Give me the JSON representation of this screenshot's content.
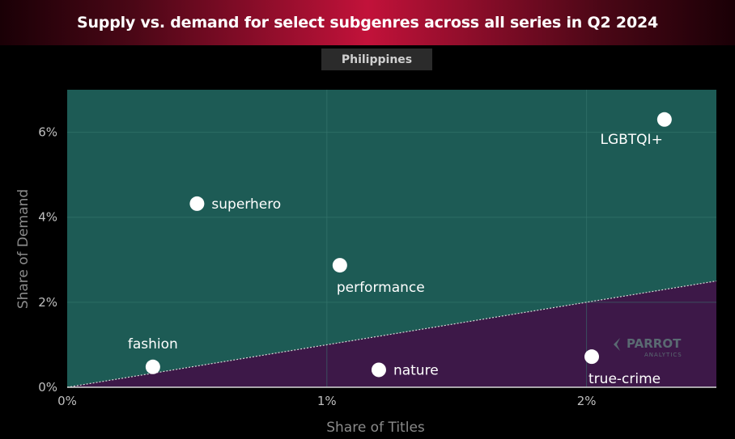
{
  "header": {
    "title": "Supply vs. demand for select subgenres across all series in Q2 2024",
    "region": "Philippines"
  },
  "watermark": {
    "brand": "PARROT",
    "sub": "ANALYTICS"
  },
  "colors": {
    "above_region": "#1d5b55",
    "below_region": "#3d1848",
    "grid": "#3a7a72",
    "points": "#ffffff",
    "diagonal": "#d8d8d8"
  },
  "chart_data": {
    "type": "scatter",
    "xlabel": "Share of Titles",
    "ylabel": "Share of Demand",
    "xlim": [
      0,
      2.5
    ],
    "ylim": [
      0,
      7.0
    ],
    "x_ticks": [
      0,
      1,
      2
    ],
    "x_tick_labels": [
      "0%",
      "1%",
      "2%"
    ],
    "y_ticks": [
      0,
      2,
      4,
      6
    ],
    "y_tick_labels": [
      "0%",
      "2%",
      "4%",
      "6%"
    ],
    "reference_line": "y = x",
    "points": [
      {
        "label": "LGBTQI+",
        "x": 2.3,
        "y": 6.3,
        "label_pos": "below-left"
      },
      {
        "label": "superhero",
        "x": 0.5,
        "y": 4.32,
        "label_pos": "right"
      },
      {
        "label": "performance",
        "x": 1.05,
        "y": 2.87,
        "label_pos": "below-right"
      },
      {
        "label": "fashion",
        "x": 0.33,
        "y": 0.48,
        "label_pos": "above"
      },
      {
        "label": "nature",
        "x": 1.2,
        "y": 0.41,
        "label_pos": "right"
      },
      {
        "label": "true-crime",
        "x": 2.02,
        "y": 0.72,
        "label_pos": "below-right"
      }
    ]
  }
}
